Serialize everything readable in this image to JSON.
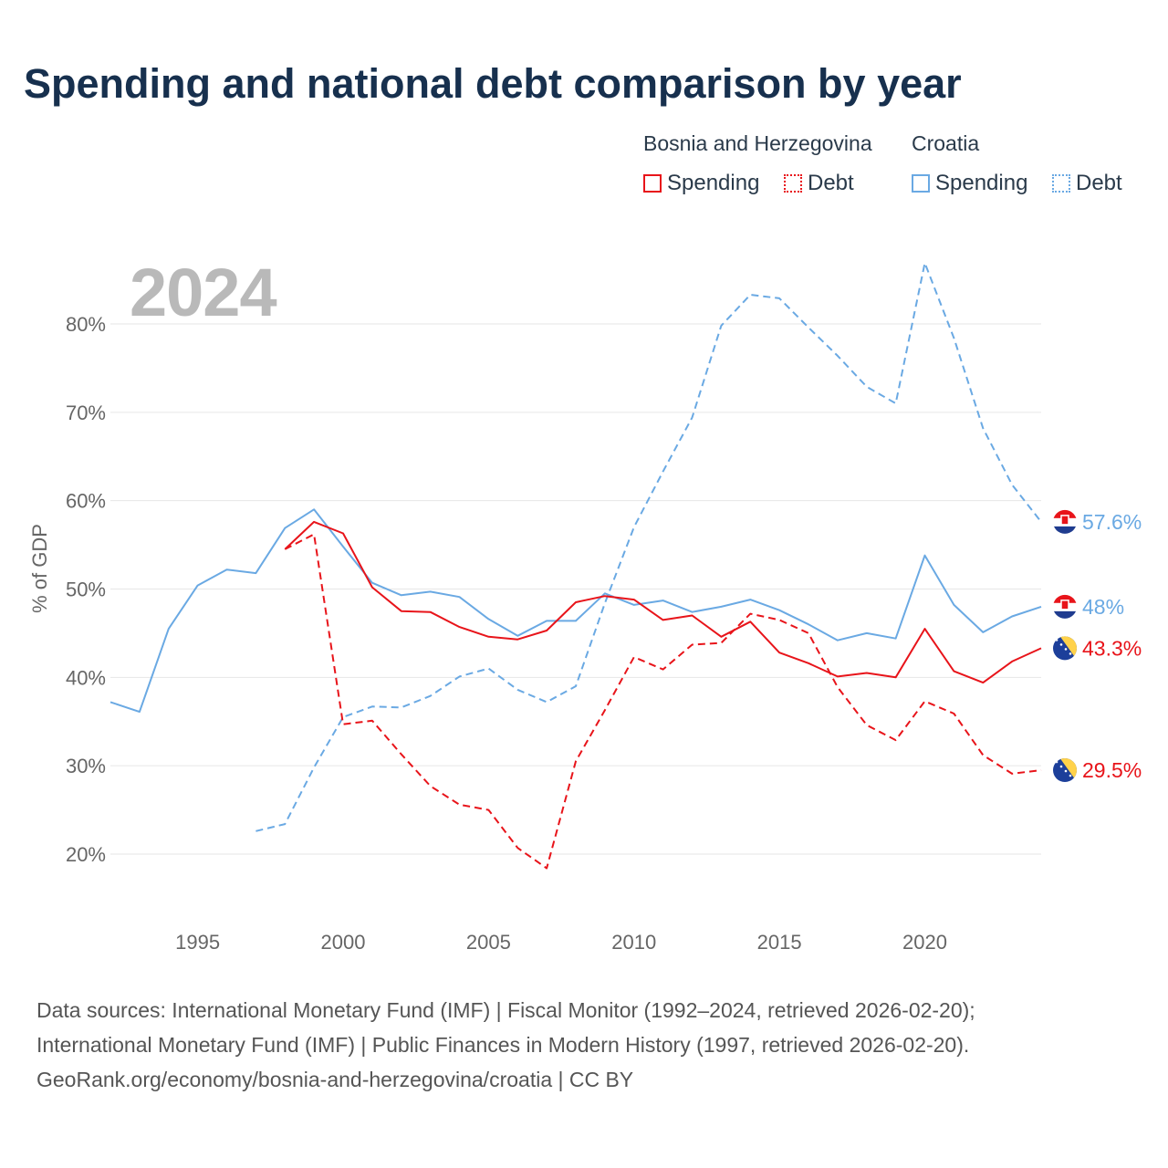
{
  "title": "Spending and national debt comparison by year",
  "legend": {
    "bih_group": "Bosnia and Herzegovina",
    "hr_group": "Croatia",
    "spending": "Spending",
    "debt": "Debt"
  },
  "year_watermark": "2024",
  "footer": {
    "line1": "Data sources: International Monetary Fund (IMF) | Fiscal Monitor (1992–2024, retrieved 2026-02-20);",
    "line2": "International Monetary Fund (IMF) | Public Finances in Modern History (1997, retrieved 2026-02-20).",
    "line3": "GeoRank.org/economy/bosnia-and-herzegovina/croatia | CC BY"
  },
  "colors": {
    "bih": "#e8141a",
    "hr": "#6aa9e3",
    "grid": "#e6e6e6"
  },
  "chart_data": {
    "type": "line",
    "ylabel": "% of GDP",
    "xlabel": "",
    "xlim": [
      1992,
      2024
    ],
    "ylim": [
      12,
      90
    ],
    "yticks": [
      20,
      30,
      40,
      50,
      60,
      70,
      80
    ],
    "ytick_labels": [
      "20%",
      "30%",
      "40%",
      "50%",
      "60%",
      "70%",
      "80%"
    ],
    "xticks": [
      1995,
      2000,
      2005,
      2010,
      2015,
      2020
    ],
    "xtick_labels": [
      "1995",
      "2000",
      "2005",
      "2010",
      "2015",
      "2020"
    ],
    "series": [
      {
        "name": "Croatia Spending",
        "country": "Croatia",
        "measure": "Spending",
        "dash": "solid",
        "color": "#6aa9e3",
        "end_label": "48%",
        "flag": "hr",
        "x": [
          1992,
          1993,
          1994,
          1995,
          1996,
          1997,
          1998,
          1999,
          2000,
          2001,
          2002,
          2003,
          2004,
          2005,
          2006,
          2007,
          2008,
          2009,
          2010,
          2011,
          2012,
          2013,
          2014,
          2015,
          2016,
          2017,
          2018,
          2019,
          2020,
          2021,
          2022,
          2023,
          2024
        ],
        "values": [
          37.2,
          36.1,
          45.5,
          50.4,
          52.2,
          51.8,
          56.9,
          59.0,
          54.8,
          50.7,
          49.3,
          49.7,
          49.1,
          46.6,
          44.7,
          46.4,
          46.4,
          49.5,
          48.2,
          48.7,
          47.4,
          48.0,
          48.8,
          47.6,
          46.0,
          44.2,
          45.0,
          44.4,
          53.8,
          48.2,
          45.1,
          46.9,
          48.0
        ]
      },
      {
        "name": "Croatia Debt",
        "country": "Croatia",
        "measure": "Debt",
        "dash": "dashed",
        "color": "#6aa9e3",
        "end_label": "57.6%",
        "flag": "hr",
        "x": [
          1997,
          1998,
          1999,
          2000,
          2001,
          2002,
          2003,
          2004,
          2005,
          2006,
          2007,
          2008,
          2009,
          2010,
          2011,
          2012,
          2013,
          2014,
          2015,
          2016,
          2017,
          2018,
          2019,
          2020,
          2021,
          2022,
          2023,
          2024
        ],
        "values": [
          22.6,
          23.4,
          29.8,
          35.5,
          36.7,
          36.6,
          37.9,
          40.1,
          41.0,
          38.6,
          37.2,
          39.0,
          48.4,
          57.0,
          63.3,
          69.4,
          79.8,
          83.3,
          82.9,
          79.6,
          76.4,
          72.9,
          71.0,
          86.9,
          78.4,
          68.2,
          61.8,
          57.6
        ]
      },
      {
        "name": "Bosnia and Herzegovina Spending",
        "country": "Bosnia and Herzegovina",
        "measure": "Spending",
        "dash": "solid",
        "color": "#e8141a",
        "end_label": "43.3%",
        "flag": "ba",
        "x": [
          1998,
          1999,
          2000,
          2001,
          2002,
          2003,
          2004,
          2005,
          2006,
          2007,
          2008,
          2009,
          2010,
          2011,
          2012,
          2013,
          2014,
          2015,
          2016,
          2017,
          2018,
          2019,
          2020,
          2021,
          2022,
          2023,
          2024
        ],
        "values": [
          54.5,
          57.6,
          56.3,
          50.2,
          47.5,
          47.4,
          45.7,
          44.6,
          44.3,
          45.3,
          48.5,
          49.2,
          48.8,
          46.5,
          47.0,
          44.6,
          46.3,
          42.8,
          41.6,
          40.1,
          40.5,
          40.0,
          45.5,
          40.7,
          39.4,
          41.8,
          43.3
        ]
      },
      {
        "name": "Bosnia and Herzegovina Debt",
        "country": "Bosnia and Herzegovina",
        "measure": "Debt",
        "dash": "dashed",
        "color": "#e8141a",
        "end_label": "29.5%",
        "flag": "ba",
        "x": [
          1998,
          1999,
          2000,
          2001,
          2002,
          2003,
          2004,
          2005,
          2006,
          2007,
          2008,
          2009,
          2010,
          2011,
          2012,
          2013,
          2014,
          2015,
          2016,
          2017,
          2018,
          2019,
          2020,
          2021,
          2022,
          2023,
          2024
        ],
        "values": [
          54.5,
          56.2,
          34.7,
          35.1,
          31.3,
          27.7,
          25.6,
          25.0,
          20.7,
          18.4,
          30.5,
          36.3,
          42.3,
          40.9,
          43.7,
          43.9,
          47.2,
          46.5,
          45.0,
          38.9,
          34.6,
          32.9,
          37.3,
          35.9,
          31.2,
          29.1,
          29.5
        ]
      }
    ]
  }
}
